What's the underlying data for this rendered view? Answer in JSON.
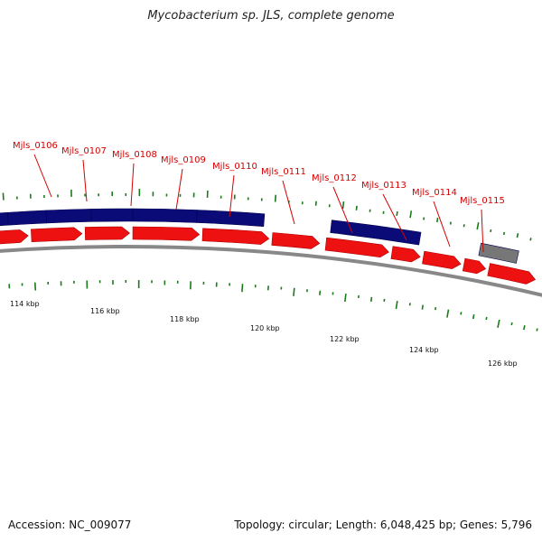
{
  "title": "Mycobacterium sp. JLS, complete genome",
  "footer": {
    "accession": "Accession: NC_009077",
    "summary": "Topology: circular; Length: 6,048,425 bp; Genes: 5,796"
  },
  "colors": {
    "cds_forward": "#ee1111",
    "cds_reverse": "#0b0b78",
    "other_gene": "#777777",
    "backbone": "#888888",
    "gc_ticks": "#1a7a1a",
    "label": "#d40000"
  },
  "genes": [
    {
      "id": "Mjls_0106"
    },
    {
      "id": "Mjls_0107"
    },
    {
      "id": "Mjls_0108"
    },
    {
      "id": "Mjls_0109"
    },
    {
      "id": "Mjls_0110"
    },
    {
      "id": "Mjls_0111"
    },
    {
      "id": "Mjls_0112"
    },
    {
      "id": "Mjls_0113"
    },
    {
      "id": "Mjls_0114"
    },
    {
      "id": "Mjls_0115"
    }
  ],
  "ticks": [
    "114 kbp",
    "116 kbp",
    "118 kbp",
    "120 kbp",
    "122 kbp",
    "124 kbp",
    "126 kbp"
  ]
}
